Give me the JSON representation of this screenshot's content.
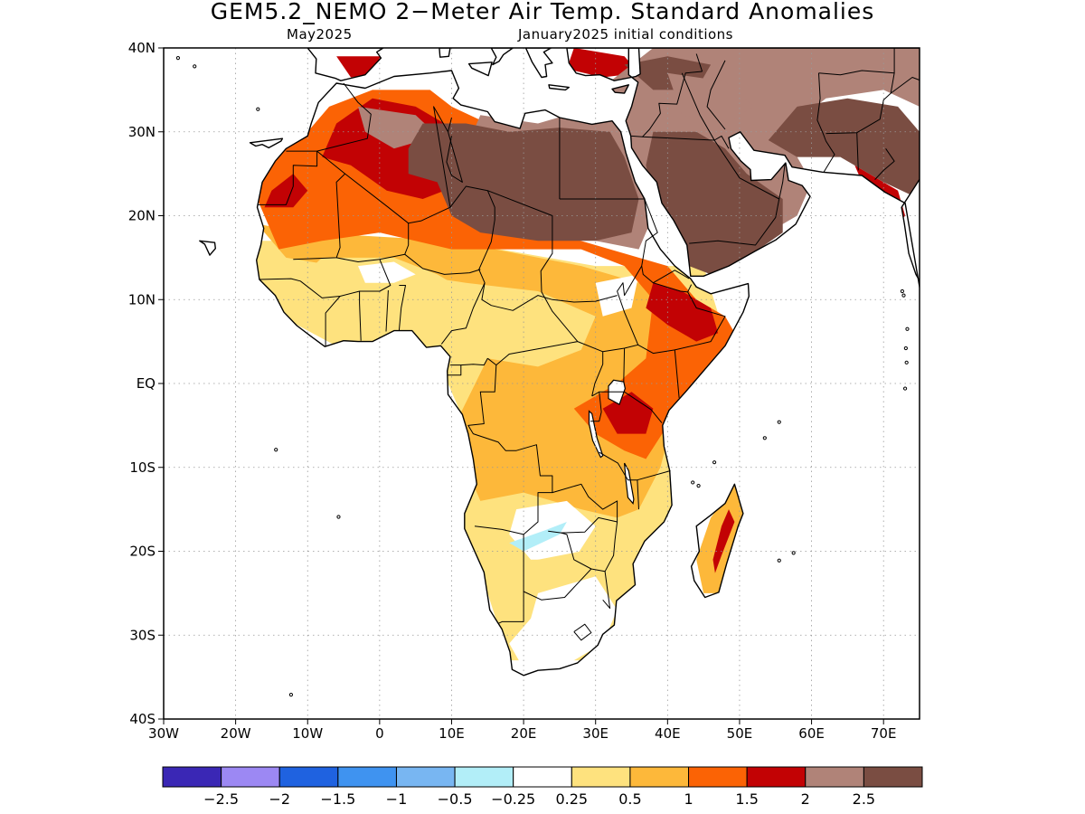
{
  "title": "GEM5.2_NEMO 2−Meter Air Temp. Standard Anomalies",
  "subtitle_left": "May2025",
  "subtitle_right": "January2025 initial conditions",
  "map": {
    "lon_range": [
      -30,
      75
    ],
    "lat_range": [
      -40,
      40
    ],
    "lat_ticks": [
      {
        "value": 40,
        "label": "40N"
      },
      {
        "value": 30,
        "label": "30N"
      },
      {
        "value": 20,
        "label": "20N"
      },
      {
        "value": 10,
        "label": "10N"
      },
      {
        "value": 0,
        "label": "EQ"
      },
      {
        "value": -10,
        "label": "10S"
      },
      {
        "value": -20,
        "label": "20S"
      },
      {
        "value": -30,
        "label": "30S"
      },
      {
        "value": -40,
        "label": "40S"
      }
    ],
    "lon_ticks": [
      {
        "value": -30,
        "label": "30W"
      },
      {
        "value": -20,
        "label": "20W"
      },
      {
        "value": -10,
        "label": "10W"
      },
      {
        "value": 0,
        "label": "0"
      },
      {
        "value": 10,
        "label": "10E"
      },
      {
        "value": 20,
        "label": "20E"
      },
      {
        "value": 30,
        "label": "30E"
      },
      {
        "value": 40,
        "label": "40E"
      },
      {
        "value": 50,
        "label": "50E"
      },
      {
        "value": 60,
        "label": "60E"
      },
      {
        "value": 70,
        "label": "70E"
      }
    ],
    "grid": true
  },
  "colorbar": {
    "colors": [
      "#3a27b5",
      "#9c88f3",
      "#1f62e0",
      "#3f93f0",
      "#78b6f2",
      "#b2eef8",
      "#ffffff",
      "#fee27e",
      "#fdb83a",
      "#fb6305",
      "#c20204",
      "#b08378",
      "#7a4d42"
    ],
    "labels": [
      "−2.5",
      "−2",
      "−1.5",
      "−1",
      "−0.5",
      "−0.25",
      "0.25",
      "0.5",
      "1",
      "1.5",
      "2",
      "2.5"
    ]
  }
}
